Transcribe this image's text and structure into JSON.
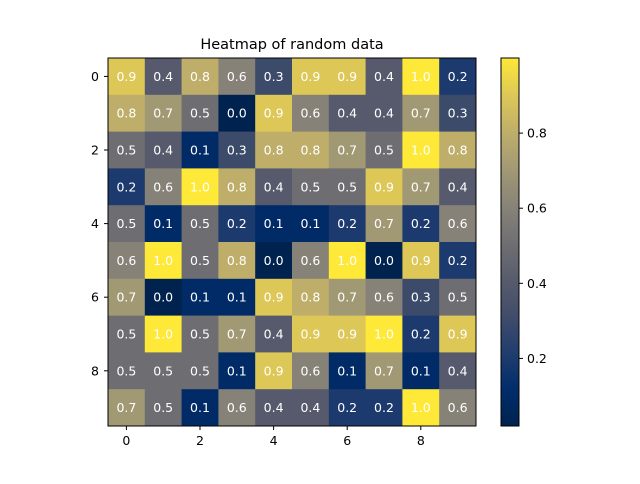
{
  "chart_data": {
    "type": "heatmap",
    "title": "Heatmap of random data",
    "xlabel": "",
    "ylabel": "",
    "x_ticks": [
      0,
      2,
      4,
      6,
      8
    ],
    "y_ticks": [
      0,
      2,
      4,
      6,
      8
    ],
    "colormap": "cividis",
    "colorbar_ticks": [
      "0.2",
      "0.4",
      "0.6",
      "0.8"
    ],
    "colorbar_range": [
      0.02,
      1.0
    ],
    "values": [
      [
        0.9,
        0.4,
        0.8,
        0.6,
        0.3,
        0.9,
        0.9,
        0.4,
        1.0,
        0.2
      ],
      [
        0.8,
        0.7,
        0.5,
        0.0,
        0.9,
        0.6,
        0.4,
        0.4,
        0.7,
        0.3
      ],
      [
        0.5,
        0.4,
        0.1,
        0.3,
        0.8,
        0.8,
        0.7,
        0.5,
        1.0,
        0.8
      ],
      [
        0.2,
        0.6,
        1.0,
        0.8,
        0.4,
        0.5,
        0.5,
        0.9,
        0.7,
        0.4
      ],
      [
        0.5,
        0.1,
        0.5,
        0.2,
        0.1,
        0.1,
        0.2,
        0.7,
        0.2,
        0.6
      ],
      [
        0.6,
        1.0,
        0.5,
        0.8,
        0.0,
        0.6,
        1.0,
        0.0,
        0.9,
        0.2
      ],
      [
        0.7,
        0.0,
        0.1,
        0.1,
        0.9,
        0.8,
        0.7,
        0.6,
        0.3,
        0.5
      ],
      [
        0.5,
        1.0,
        0.5,
        0.7,
        0.4,
        0.9,
        0.9,
        1.0,
        0.2,
        0.9
      ],
      [
        0.5,
        0.5,
        0.5,
        0.1,
        0.9,
        0.6,
        0.1,
        0.7,
        0.1,
        0.4
      ],
      [
        0.7,
        0.5,
        0.1,
        0.6,
        0.4,
        0.4,
        0.2,
        0.2,
        1.0,
        0.6
      ]
    ],
    "grid": false,
    "legend": "none"
  }
}
